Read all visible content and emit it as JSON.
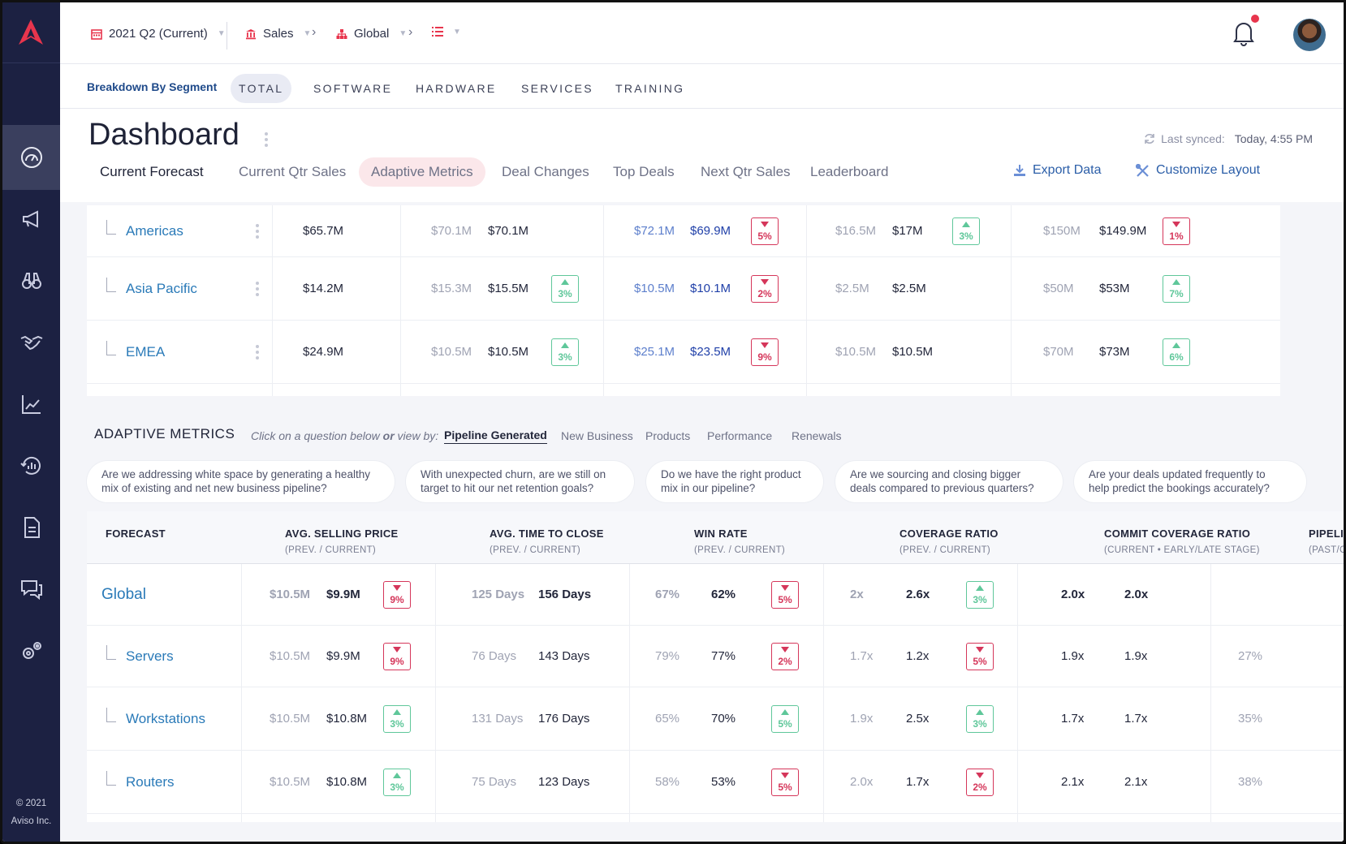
{
  "topbar": {
    "period": "2021 Q2 (Current)",
    "segment": "Sales",
    "region": "Global"
  },
  "segments": {
    "title": "Breakdown By Segment",
    "tabs": [
      "TOTAL",
      "SOFTWARE",
      "HARDWARE",
      "SERVICES",
      "TRAINING"
    ],
    "active": "TOTAL"
  },
  "dashboard": {
    "title": "Dashboard",
    "last_synced_label": "Last synced:",
    "last_synced_value": "Today, 4:55 PM",
    "tabs": [
      "Current Forecast",
      "Current Qtr Sales",
      "Adaptive Metrics",
      "Deal Changes",
      "Top Deals",
      "Next Qtr Sales",
      "Leaderboard"
    ],
    "active_tab": "Adaptive Metrics",
    "export_label": "Export Data",
    "customize_label": "Customize Layout"
  },
  "top_rows": [
    {
      "name": "Americas",
      "c1": "$65.7M",
      "c2a": "$70.1M",
      "c2b": "$70.1M",
      "c3a": "$72.1M",
      "c3b": "$69.9M",
      "b3": {
        "dir": "down",
        "v": "5%"
      },
      "c4a": "$16.5M",
      "c4b": "$17M",
      "b4": {
        "dir": "up",
        "v": "3%"
      },
      "c5a": "$150M",
      "c5b": "$149.9M",
      "b5": {
        "dir": "down",
        "v": "1%"
      }
    },
    {
      "name": "Asia Pacific",
      "c1": "$14.2M",
      "c2a": "$15.3M",
      "c2b": "$15.5M",
      "b2": {
        "dir": "up",
        "v": "3%"
      },
      "c3a": "$10.5M",
      "c3b": "$10.1M",
      "b3": {
        "dir": "down",
        "v": "2%"
      },
      "c4a": "$2.5M",
      "c4b": "$2.5M",
      "c5a": "$50M",
      "c5b": "$53M",
      "b5": {
        "dir": "up",
        "v": "7%"
      }
    },
    {
      "name": "EMEA",
      "c1": "$24.9M",
      "c2a": "$10.5M",
      "c2b": "$10.5M",
      "b2": {
        "dir": "up",
        "v": "3%"
      },
      "c3a": "$25.1M",
      "c3b": "$23.5M",
      "b3": {
        "dir": "down",
        "v": "9%"
      },
      "c4a": "$10.5M",
      "c4b": "$10.5M",
      "c5a": "$70M",
      "c5b": "$73M",
      "b5": {
        "dir": "up",
        "v": "6%"
      }
    }
  ],
  "adaptive": {
    "title": "ADAPTIVE METRICS",
    "hint_a": "Click on a question below",
    "hint_or": "or",
    "hint_b": "view by:",
    "views": [
      "Pipeline Generated",
      "New Business",
      "Products",
      "Performance",
      "Renewals"
    ],
    "active_view": "Pipeline Generated",
    "questions": [
      [
        "Are we addressing white space by generating a healthy",
        "mix of existing and net new business pipeline?"
      ],
      [
        "With unexpected churn, are we still on",
        "target to hit our net retention goals?"
      ],
      [
        "Do we have the right product",
        "mix in our pipeline?"
      ],
      [
        "Are we sourcing and closing bigger",
        "deals compared to previous quarters?"
      ],
      [
        "Are your deals updated frequently to",
        "help predict the bookings accurately?"
      ]
    ]
  },
  "metrics_table": {
    "headers": [
      {
        "title": "FORECAST",
        "sub": ""
      },
      {
        "title": "AVG. SELLING PRICE",
        "sub": "(PREV. / CURRENT)"
      },
      {
        "title": "AVG. TIME TO CLOSE",
        "sub": "(PREV. / CURRENT)"
      },
      {
        "title": "WIN RATE",
        "sub": "(PREV. / CURRENT)"
      },
      {
        "title": "COVERAGE RATIO",
        "sub": "(PREV. / CURRENT)"
      },
      {
        "title": "COMMIT COVERAGE RATIO",
        "sub": "(CURRENT • EARLY/LATE STAGE)"
      },
      {
        "title": "PIPELI",
        "sub": "(PAST/C"
      }
    ],
    "rows": [
      {
        "name": "Global",
        "asp_prev": "$10.5M",
        "asp_cur": "$9.9M",
        "asp_b": {
          "dir": "down",
          "v": "9%"
        },
        "ttc_prev": "125 Days",
        "ttc_cur": "156 Days",
        "win_prev": "67%",
        "win_cur": "62%",
        "win_b": {
          "dir": "down",
          "v": "5%"
        },
        "cov_prev": "2x",
        "cov_cur": "2.6x",
        "cov_b": {
          "dir": "up",
          "v": "3%"
        },
        "cc_a": "2.0x",
        "cc_b": "2.0x",
        "pipe": ""
      },
      {
        "name": "Servers",
        "asp_prev": "$10.5M",
        "asp_cur": "$9.9M",
        "asp_b": {
          "dir": "down",
          "v": "9%"
        },
        "ttc_prev": "76 Days",
        "ttc_cur": "143 Days",
        "win_prev": "79%",
        "win_cur": "77%",
        "win_b": {
          "dir": "down",
          "v": "2%"
        },
        "cov_prev": "1.7x",
        "cov_cur": "1.2x",
        "cov_b": {
          "dir": "down",
          "v": "5%"
        },
        "cc_a": "1.9x",
        "cc_b": "1.9x",
        "pipe": "27%"
      },
      {
        "name": "Workstations",
        "asp_prev": "$10.5M",
        "asp_cur": "$10.8M",
        "asp_b": {
          "dir": "up",
          "v": "3%"
        },
        "ttc_prev": "131 Days",
        "ttc_cur": "176 Days",
        "win_prev": "65%",
        "win_cur": "70%",
        "win_b": {
          "dir": "up",
          "v": "5%"
        },
        "cov_prev": "1.9x",
        "cov_cur": "2.5x",
        "cov_b": {
          "dir": "up",
          "v": "3%"
        },
        "cc_a": "1.7x",
        "cc_b": "1.7x",
        "pipe": "35%"
      },
      {
        "name": "Routers",
        "asp_prev": "$10.5M",
        "asp_cur": "$10.8M",
        "asp_b": {
          "dir": "up",
          "v": "3%"
        },
        "ttc_prev": "75 Days",
        "ttc_cur": "123 Days",
        "win_prev": "58%",
        "win_cur": "53%",
        "win_b": {
          "dir": "down",
          "v": "5%"
        },
        "cov_prev": "2.0x",
        "cov_cur": "1.7x",
        "cov_b": {
          "dir": "down",
          "v": "2%"
        },
        "cc_a": "2.1x",
        "cc_b": "2.1x",
        "pipe": "38%"
      }
    ]
  },
  "footer": {
    "line1": "© 2021",
    "line2": "Aviso Inc."
  },
  "colors": {
    "sidebar": "#1c2142",
    "accent": "#e8354d",
    "link": "#2a7ab8",
    "badge_down": "#d5365a",
    "badge_up": "#5fc79a"
  },
  "icons": [
    "aviso-logo-icon",
    "dashboard-gauge-icon",
    "megaphone-icon",
    "binoculars-icon",
    "handshake-icon",
    "line-chart-icon",
    "cycle-chart-icon",
    "document-icon",
    "chat-icon",
    "settings-gears-icon",
    "calendar-icon",
    "bank-icon",
    "org-chart-icon",
    "list-icon",
    "bell-icon",
    "sync-icon",
    "download-icon",
    "tools-icon"
  ]
}
